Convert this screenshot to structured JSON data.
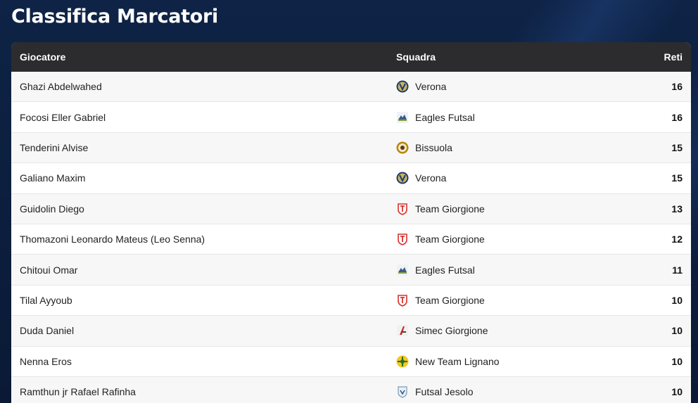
{
  "page": {
    "title": "Classifica Marcatori"
  },
  "table": {
    "columns": {
      "player": "Giocatore",
      "team": "Squadra",
      "goals": "Reti"
    },
    "rows": [
      {
        "player": "Ghazi Abdelwahed",
        "team": "Verona",
        "goals": "16",
        "logo": "verona"
      },
      {
        "player": "Focosi Eller Gabriel",
        "team": "Eagles Futsal",
        "goals": "16",
        "logo": "eagles"
      },
      {
        "player": "Tenderini Alvise",
        "team": "Bissuola",
        "goals": "15",
        "logo": "bissuola"
      },
      {
        "player": "Galiano Maxim",
        "team": "Verona",
        "goals": "15",
        "logo": "verona"
      },
      {
        "player": "Guidolin Diego",
        "team": "Team Giorgione",
        "goals": "13",
        "logo": "giorgione"
      },
      {
        "player": "Thomazoni Leonardo Mateus (Leo Senna)",
        "team": "Team Giorgione",
        "goals": "12",
        "logo": "giorgione"
      },
      {
        "player": "Chitoui Omar",
        "team": "Eagles Futsal",
        "goals": "11",
        "logo": "eagles"
      },
      {
        "player": "Tilal Ayyoub",
        "team": "Team Giorgione",
        "goals": "10",
        "logo": "giorgione"
      },
      {
        "player": "Duda Daniel",
        "team": "Simec Giorgione",
        "goals": "10",
        "logo": "simec"
      },
      {
        "player": "Nenna Eros",
        "team": "New Team Lignano",
        "goals": "10",
        "logo": "lignano"
      },
      {
        "player": "Ramthun jr Rafael Rafinha",
        "team": "Futsal Jesolo",
        "goals": "10",
        "logo": "jesolo"
      }
    ]
  },
  "colors": {
    "background": "#0b1e3d",
    "header_bg": "#2c2c2e",
    "row_alt": "#f7f7f7",
    "giorgione_red": "#d9302c",
    "verona_blue": "#1f3b73",
    "lignano_yellow": "#f2c81e"
  }
}
